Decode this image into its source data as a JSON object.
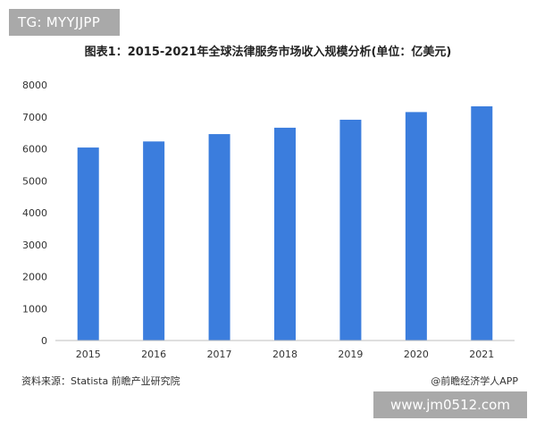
{
  "badge": {
    "text": "TG: MYYJJPP"
  },
  "chart_data": {
    "type": "bar",
    "title": "图表1：2015-2021年全球法律服务市场收入规模分析(单位：亿美元)",
    "xlabel": "",
    "ylabel": "",
    "categories": [
      "2015",
      "2016",
      "2017",
      "2018",
      "2019",
      "2020",
      "2021"
    ],
    "series": [
      {
        "values": [
          6040,
          6230,
          6460,
          6660,
          6910,
          7150,
          7330
        ]
      }
    ],
    "ylim": [
      0,
      8000
    ],
    "yticks": [
      0,
      1000,
      2000,
      3000,
      4000,
      5000,
      6000,
      7000,
      8000
    ],
    "grid": false,
    "bar_color": "#3b7ddd"
  },
  "footer": {
    "source": "资料来源：Statista 前瞻产业研究院",
    "brand": "@前瞻经济学人APP"
  },
  "watermark": {
    "url": "www.jm0512.com"
  }
}
